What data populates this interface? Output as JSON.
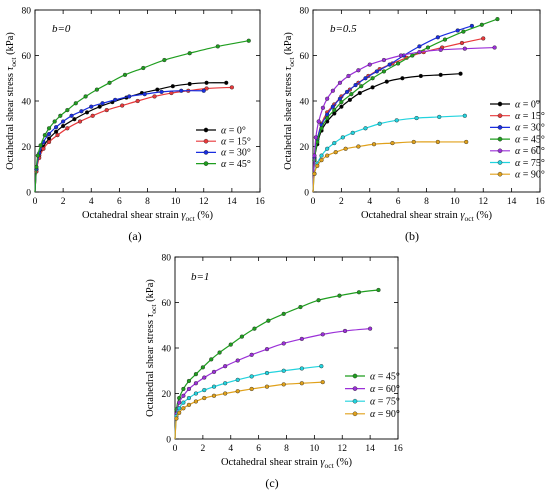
{
  "figure": {
    "panels": [
      "(a)",
      "(b)",
      "(c)"
    ]
  },
  "chart_data": [
    {
      "type": "line",
      "panel_label": "(a)",
      "annotation": "b=0",
      "xlabel": "Octahedral shear strain γoct (%)",
      "ylabel": "Octahedral shear stress τoct (kPa)",
      "xlim": [
        0,
        16
      ],
      "ylim": [
        0,
        80
      ],
      "xticks": [
        0,
        2,
        4,
        6,
        8,
        10,
        12,
        14,
        16
      ],
      "yticks": [
        0,
        20,
        40,
        60,
        80
      ],
      "grid": false,
      "legend_position": "bottom-right",
      "series": [
        {
          "name": "α = 0°",
          "color": "#000000",
          "x": [
            0,
            0.1,
            0.3,
            0.6,
            1,
            1.5,
            2,
            2.8,
            3.7,
            4.6,
            5.5,
            6.5,
            7.6,
            8.7,
            9.8,
            11,
            12.2,
            13.6
          ],
          "y": [
            0,
            10,
            16,
            20,
            23.5,
            26.5,
            29,
            32,
            35,
            37.5,
            39.5,
            41.5,
            43.5,
            45,
            46.5,
            47.5,
            48,
            48
          ]
        },
        {
          "name": "α = 15°",
          "color": "#e8393b",
          "x": [
            0,
            0.1,
            0.3,
            0.6,
            1,
            1.6,
            2.3,
            3.2,
            4.1,
            5.1,
            6.2,
            7.3,
            8.5,
            9.7,
            10.9,
            12.2,
            14
          ],
          "y": [
            0,
            9,
            15,
            19,
            22,
            25,
            28,
            31,
            33.5,
            36,
            38,
            40,
            42,
            43.5,
            44.5,
            45.5,
            46
          ]
        },
        {
          "name": "α = 30°",
          "color": "#1a2ee0",
          "x": [
            0,
            0.1,
            0.3,
            0.6,
            1,
            1.5,
            2,
            2.6,
            3.3,
            4,
            4.8,
            5.7,
            6.7,
            7.8,
            9,
            10.4,
            12
          ],
          "y": [
            0,
            10,
            17,
            22,
            25.5,
            28.5,
            31,
            33.5,
            35.5,
            37.5,
            39,
            40.5,
            42,
            43,
            44,
            44.5,
            44.5
          ]
        },
        {
          "name": "α = 45°",
          "color": "#1f9e1f",
          "x": [
            0,
            0.1,
            0.2,
            0.4,
            0.7,
            1,
            1.4,
            1.8,
            2.3,
            2.9,
            3.6,
            4.4,
            5.3,
            6.4,
            7.7,
            9.2,
            11,
            13,
            15.2
          ],
          "y": [
            0,
            11,
            16,
            20.5,
            25,
            28,
            31,
            33.5,
            36,
            39,
            42,
            45,
            48,
            51.5,
            54.5,
            58,
            61,
            64,
            66.5
          ]
        }
      ]
    },
    {
      "type": "line",
      "panel_label": "(b)",
      "annotation": "b=0.5",
      "xlabel": "Octahedral shear strain γoct (%)",
      "ylabel": "Octahedral shear stress τoct (kPa)",
      "xlim": [
        0,
        16
      ],
      "ylim": [
        0,
        80
      ],
      "xticks": [
        0,
        2,
        4,
        6,
        8,
        10,
        12,
        14,
        16
      ],
      "yticks": [
        0,
        20,
        40,
        60,
        80
      ],
      "grid": false,
      "legend_position": "bottom-right",
      "series": [
        {
          "name": "α = 0°",
          "color": "#000000",
          "x": [
            0,
            0.1,
            0.3,
            0.6,
            1,
            1.5,
            2,
            2.6,
            3.3,
            4.2,
            5.2,
            6.3,
            7.6,
            9,
            10.4
          ],
          "y": [
            0,
            14,
            21,
            27,
            31,
            34.5,
            37.5,
            40.5,
            43.5,
            46,
            48.5,
            50,
            51,
            51.5,
            52
          ]
        },
        {
          "name": "α = 15°",
          "color": "#e8393b",
          "x": [
            0,
            0.1,
            0.3,
            0.6,
            1,
            1.5,
            2,
            2.6,
            3.2,
            3.9,
            4.7,
            5.6,
            6.6,
            7.8,
            9.1,
            10.5,
            12
          ],
          "y": [
            0,
            15,
            23,
            30,
            35,
            38.5,
            42,
            45,
            48,
            51,
            54,
            56.5,
            59,
            61.5,
            63.5,
            65.5,
            67.5
          ]
        },
        {
          "name": "α = 30°",
          "color": "#1a2ee0",
          "x": [
            0,
            0.1,
            0.3,
            0.6,
            1,
            1.4,
            1.9,
            2.4,
            3,
            3.7,
            4.5,
            5.4,
            6.4,
            7.5,
            8.8,
            10.2,
            11.2
          ],
          "y": [
            0,
            15,
            23,
            29.5,
            34,
            37.5,
            41,
            44,
            47,
            50,
            53,
            56,
            60,
            64,
            68,
            71,
            73
          ]
        },
        {
          "name": "α = 45°",
          "color": "#1f9e1f",
          "x": [
            0,
            0.1,
            0.3,
            0.6,
            1,
            1.5,
            2,
            2.7,
            3.4,
            4.2,
            5,
            6,
            7,
            8.1,
            9.3,
            10.6,
            11.9,
            13
          ],
          "y": [
            0,
            14,
            22,
            28,
            32.5,
            36,
            39.5,
            43,
            46.5,
            50,
            53,
            56.5,
            60,
            63.5,
            67,
            70.5,
            73.5,
            76
          ]
        },
        {
          "name": "α = 60°",
          "color": "#9b30d8",
          "x": [
            0,
            0.1,
            0.2,
            0.4,
            0.7,
            1,
            1.4,
            1.9,
            2.5,
            3.2,
            4,
            5,
            6.2,
            7.5,
            9,
            10.7,
            12.8
          ],
          "y": [
            0,
            16,
            24,
            31,
            37,
            41,
            44.5,
            48,
            51,
            53.5,
            56,
            58,
            60,
            61.5,
            62.5,
            63,
            63.5
          ]
        },
        {
          "name": "α = 75°",
          "color": "#22d3de",
          "x": [
            0,
            0.1,
            0.3,
            0.6,
            1,
            1.5,
            2.1,
            2.8,
            3.7,
            4.7,
            5.9,
            7.3,
            8.9,
            10.7
          ],
          "y": [
            0,
            8,
            12.5,
            16,
            19,
            21.5,
            24,
            26,
            28,
            30,
            31.5,
            32.5,
            33,
            33.5
          ]
        },
        {
          "name": "α = 90°",
          "color": "#e0a11b",
          "x": [
            0,
            0.1,
            0.3,
            0.6,
            1,
            1.6,
            2.3,
            3.2,
            4.3,
            5.6,
            7.1,
            8.8,
            10.8
          ],
          "y": [
            0,
            8,
            11.5,
            14,
            16,
            17.5,
            19,
            20,
            21,
            21.5,
            22,
            22,
            22
          ]
        }
      ]
    },
    {
      "type": "line",
      "panel_label": "(c)",
      "annotation": "b=1",
      "xlabel": "Octahedral shear strain γoct (%)",
      "ylabel": "Octahedral shear stress τoct (kPa)",
      "xlim": [
        0,
        16
      ],
      "ylim": [
        0,
        80
      ],
      "xticks": [
        0,
        2,
        4,
        6,
        8,
        10,
        12,
        14,
        16
      ],
      "yticks": [
        0,
        20,
        40,
        60,
        80
      ],
      "grid": false,
      "legend_position": "bottom-right",
      "series": [
        {
          "name": "α = 45°",
          "color": "#1f9e1f",
          "x": [
            0,
            0.1,
            0.3,
            0.6,
            1,
            1.5,
            2,
            2.6,
            3.2,
            4,
            4.8,
            5.7,
            6.7,
            7.8,
            9,
            10.3,
            11.8,
            13.2,
            14.6
          ],
          "y": [
            0,
            13,
            18,
            22,
            25.5,
            28.5,
            31.5,
            35,
            38,
            41.5,
            45,
            48.5,
            52,
            55,
            58,
            61,
            63,
            64.5,
            65.5
          ]
        },
        {
          "name": "α = 60°",
          "color": "#9b30d8",
          "x": [
            0,
            0.1,
            0.3,
            0.6,
            1,
            1.5,
            2.1,
            2.8,
            3.6,
            4.5,
            5.5,
            6.6,
            7.8,
            9.1,
            10.6,
            12.2,
            14
          ],
          "y": [
            0,
            11,
            16,
            19,
            22,
            24.5,
            27,
            29.5,
            32,
            34.5,
            37,
            39.5,
            42,
            44,
            46,
            47.5,
            48.5
          ]
        },
        {
          "name": "α = 75°",
          "color": "#22d3de",
          "x": [
            0,
            0.1,
            0.3,
            0.6,
            1,
            1.5,
            2.1,
            2.8,
            3.6,
            4.5,
            5.5,
            6.6,
            7.8,
            9.1,
            10.5
          ],
          "y": [
            0,
            10,
            13.5,
            16,
            18,
            20,
            21.5,
            23,
            24.5,
            26,
            27.5,
            29,
            30,
            31,
            32
          ]
        },
        {
          "name": "α = 90°",
          "color": "#e0a11b",
          "x": [
            0,
            0.1,
            0.3,
            0.6,
            1,
            1.5,
            2.1,
            2.8,
            3.6,
            4.5,
            5.5,
            6.6,
            7.8,
            9.1,
            10.6
          ],
          "y": [
            0,
            9,
            11.5,
            13.5,
            15,
            16.5,
            18,
            19,
            20,
            21,
            22,
            23,
            24,
            24.5,
            25
          ]
        }
      ]
    }
  ]
}
